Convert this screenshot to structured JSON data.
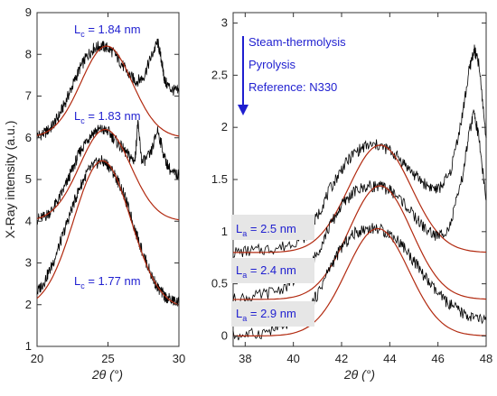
{
  "chart_data": [
    {
      "type": "line",
      "ylabel": "X-Ray intensity (a.u.)",
      "xlabel": "2θ (°)",
      "xlim": [
        20,
        30
      ],
      "ylim": [
        1,
        9
      ],
      "xticks": [
        20,
        25,
        30
      ],
      "yticks": [
        1,
        2,
        3,
        4,
        5,
        6,
        7,
        8,
        9
      ],
      "grid": false,
      "curve_colors": {
        "data": "#000000",
        "fit": "#b22a10"
      },
      "series": [
        {
          "x": [
            20.0,
            20.5,
            21.0,
            21.5,
            22.0,
            22.5,
            23.0,
            23.5,
            24.0,
            24.5,
            25.0,
            25.5,
            26.0,
            26.5,
            27.0,
            27.5,
            28.0,
            28.5,
            28.8,
            29.0,
            29.5,
            30.0
          ],
          "y": [
            6.05,
            6.1,
            6.25,
            6.5,
            6.85,
            7.25,
            7.65,
            7.95,
            8.15,
            8.2,
            8.15,
            8.0,
            7.75,
            7.5,
            7.35,
            7.45,
            7.9,
            8.3,
            7.8,
            7.35,
            7.15,
            7.1
          ],
          "fit": {
            "peak_x": 24.9,
            "peak_y": 8.2,
            "width": 1.8,
            "base": 6.0
          }
        },
        {
          "x": [
            20.0,
            20.5,
            21.0,
            21.5,
            22.0,
            22.5,
            23.0,
            23.5,
            24.0,
            24.5,
            25.0,
            25.5,
            26.0,
            26.5,
            26.9,
            27.1,
            27.4,
            28.0,
            28.5,
            29.0,
            29.5,
            30.0
          ],
          "y": [
            4.05,
            4.1,
            4.25,
            4.5,
            4.85,
            5.25,
            5.65,
            5.95,
            6.15,
            6.2,
            6.15,
            5.95,
            5.75,
            5.55,
            5.45,
            6.35,
            5.4,
            5.6,
            6.2,
            5.5,
            5.15,
            5.1
          ],
          "fit": {
            "peak_x": 24.8,
            "peak_y": 6.2,
            "width": 1.8,
            "base": 4.0
          }
        },
        {
          "x": [
            20.0,
            20.5,
            21.0,
            21.5,
            22.0,
            22.5,
            23.0,
            23.5,
            24.0,
            24.5,
            25.0,
            25.5,
            26.0,
            26.5,
            27.0,
            27.5,
            28.0,
            28.5,
            29.0,
            29.5,
            30.0
          ],
          "y": [
            2.3,
            2.55,
            2.9,
            3.35,
            3.85,
            4.35,
            4.8,
            5.15,
            5.35,
            5.45,
            5.35,
            5.1,
            4.75,
            4.25,
            3.7,
            3.2,
            2.75,
            2.4,
            2.2,
            2.1,
            2.05
          ],
          "fit": {
            "peak_x": 24.6,
            "peak_y": 5.45,
            "width": 2.0,
            "base": 1.9
          }
        }
      ],
      "annotations": [
        {
          "label": "L",
          "sub": "c",
          "text": " = 1.84 nm"
        },
        {
          "label": "L",
          "sub": "c",
          "text": " = 1.83 nm"
        },
        {
          "label": "L",
          "sub": "c",
          "text": " = 1.77 nm"
        }
      ]
    },
    {
      "type": "line",
      "xlabel": "2θ (°)",
      "xlim": [
        37.5,
        48
      ],
      "ylim": [
        -0.1,
        3.1
      ],
      "xticks": [
        38,
        40,
        42,
        44,
        46,
        48
      ],
      "yticks": [
        0,
        0.5,
        1,
        1.5,
        2,
        2.5,
        3
      ],
      "ytick_labels": [
        "0",
        "0.5",
        "1",
        "1.5",
        "2",
        "2.5",
        "3"
      ],
      "grid": false,
      "series": [
        {
          "x": [
            37.5,
            38.5,
            39.5,
            40.5,
            41.0,
            41.5,
            42.0,
            42.5,
            43.0,
            43.5,
            44.0,
            44.5,
            45.0,
            45.5,
            46.0,
            46.5,
            47.0,
            47.3,
            47.5,
            47.7,
            48.0
          ],
          "y": [
            0.8,
            0.82,
            0.85,
            0.95,
            1.15,
            1.4,
            1.6,
            1.75,
            1.82,
            1.83,
            1.78,
            1.68,
            1.55,
            1.45,
            1.4,
            1.55,
            2.1,
            2.55,
            2.75,
            2.6,
            1.9
          ],
          "fit": {
            "peak_x": 43.6,
            "peak_y": 1.83,
            "width": 1.3,
            "base": 0.8
          }
        },
        {
          "x": [
            37.5,
            38.5,
            39.5,
            40.5,
            41.0,
            41.5,
            42.0,
            42.5,
            43.0,
            43.5,
            44.0,
            44.5,
            45.0,
            45.5,
            46.0,
            46.5,
            47.0,
            47.3,
            47.5,
            47.7,
            48.0
          ],
          "y": [
            0.35,
            0.38,
            0.45,
            0.6,
            0.8,
            1.05,
            1.25,
            1.38,
            1.43,
            1.44,
            1.4,
            1.3,
            1.15,
            1.02,
            0.95,
            1.05,
            1.5,
            1.95,
            2.15,
            1.9,
            1.3
          ],
          "fit": {
            "peak_x": 43.6,
            "peak_y": 1.44,
            "width": 1.3,
            "base": 0.35
          }
        },
        {
          "x": [
            37.5,
            38.5,
            39.5,
            40.5,
            41.0,
            41.5,
            42.0,
            42.5,
            43.0,
            43.5,
            44.0,
            44.5,
            45.0,
            45.5,
            46.0,
            46.5,
            47.0,
            47.5,
            48.0
          ],
          "y": [
            0.0,
            0.02,
            0.08,
            0.2,
            0.4,
            0.65,
            0.85,
            0.98,
            1.03,
            1.03,
            0.98,
            0.88,
            0.72,
            0.55,
            0.4,
            0.3,
            0.22,
            0.17,
            0.15
          ],
          "fit": {
            "peak_x": 43.5,
            "peak_y": 1.03,
            "width": 1.3,
            "base": 0.0
          }
        }
      ],
      "legend": [
        "Steam-thermolysis",
        "Pyrolysis",
        "Reference: N330"
      ],
      "legend_placement": "top-left",
      "legend_color": "#1f1fd0",
      "annotations": [
        {
          "label": "L",
          "sub": "a",
          "text": " = 2.5 nm"
        },
        {
          "label": "L",
          "sub": "a",
          "text": " = 2.4 nm"
        },
        {
          "label": "L",
          "sub": "a",
          "text": " = 2.9 nm"
        }
      ]
    }
  ]
}
